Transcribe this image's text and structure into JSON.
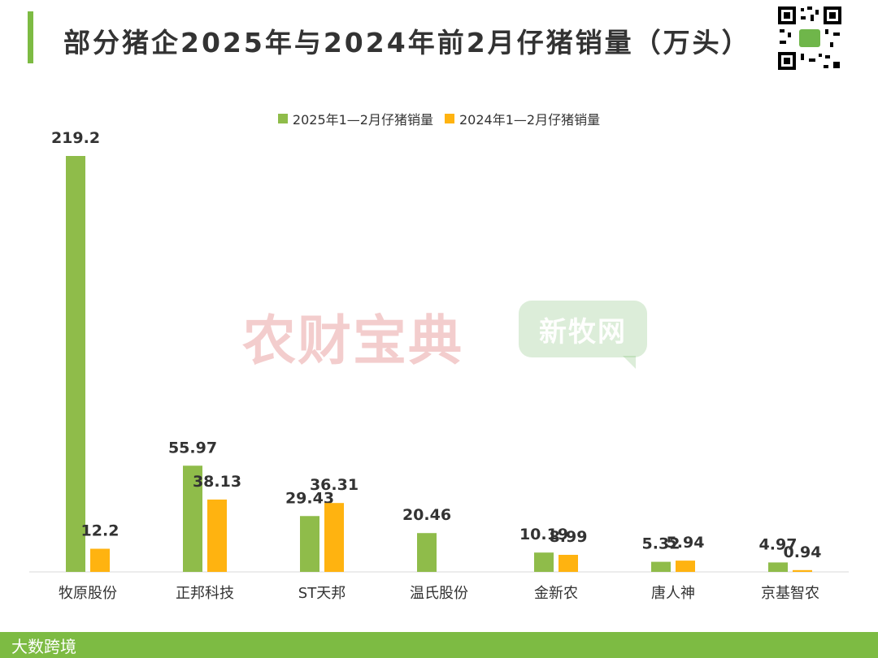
{
  "header": {
    "title": "部分猪企2025年与2024年前2月仔猪销量（万头）"
  },
  "watermarks": {
    "left": "农财宝典",
    "right": "新牧网",
    "footer": "大数跨境"
  },
  "colors": {
    "series_2025": "#8fbc4a",
    "series_2024": "#ffb310",
    "accent": "#7dbb43"
  },
  "chart_data": {
    "type": "bar",
    "categories": [
      "牧原股份",
      "正邦科技",
      "ST天邦",
      "温氏股份",
      "金新农",
      "唐人神",
      "京基智农"
    ],
    "series": [
      {
        "name": "2025年1—2月仔猪销量",
        "values": [
          219.2,
          55.97,
          29.43,
          20.46,
          10.19,
          5.32,
          4.97
        ],
        "labels": [
          "219.2",
          "55.97",
          "29.43",
          "20.46",
          "10.19",
          "5.32",
          "4.97"
        ]
      },
      {
        "name": "2024年1—2月仔猪销量",
        "values": [
          12.2,
          38.13,
          36.31,
          null,
          8.99,
          5.94,
          0.94
        ],
        "labels": [
          "12.2",
          "38.13",
          "36.31",
          "",
          "8.99",
          "5.94",
          "0.94"
        ]
      }
    ],
    "title": "部分猪企2025年与2024年前2月仔猪销量（万头）",
    "xlabel": "",
    "ylabel": "",
    "ylim": [
      0,
      219.2
    ],
    "grid": false,
    "legend_position": "top-center"
  }
}
